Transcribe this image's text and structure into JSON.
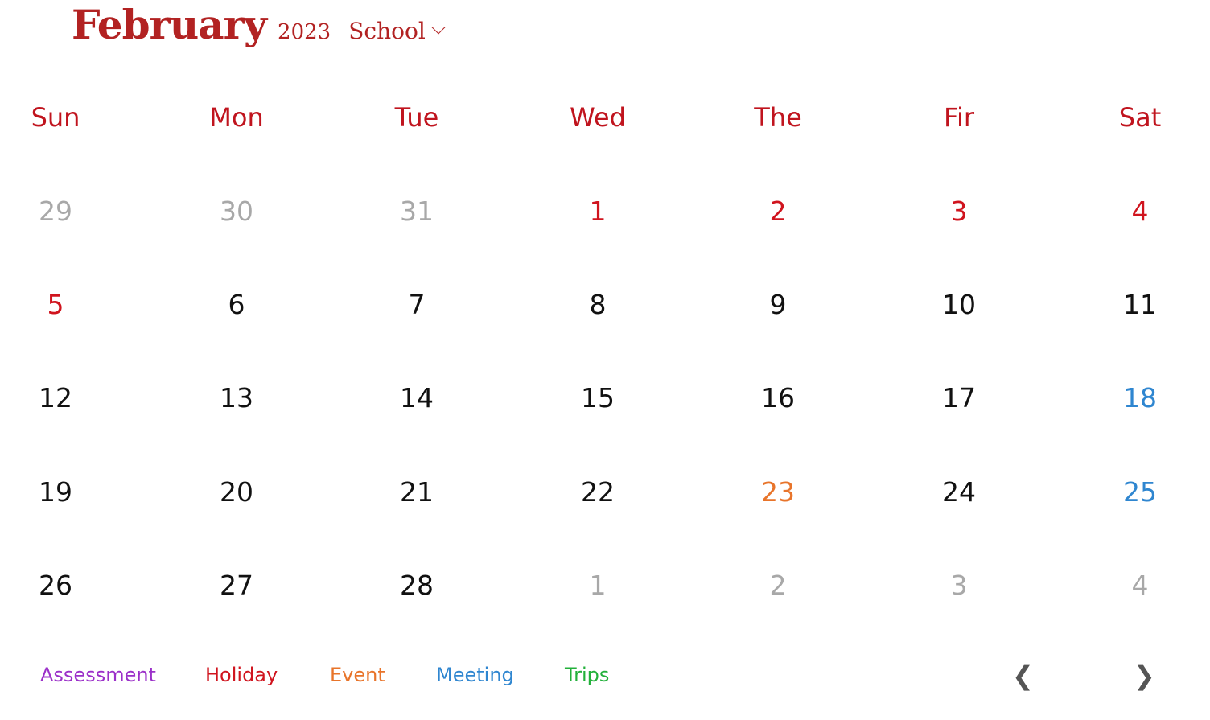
{
  "header": {
    "month": "February",
    "year": "2023",
    "calendar": "School"
  },
  "weekdays": [
    "Sun",
    "Mon",
    "Tue",
    "Wed",
    "The",
    "Fir",
    "Sat"
  ],
  "weeks": [
    [
      {
        "day": "29",
        "type": "outside"
      },
      {
        "day": "30",
        "type": "outside"
      },
      {
        "day": "31",
        "type": "outside"
      },
      {
        "day": "1",
        "type": "holiday"
      },
      {
        "day": "2",
        "type": "holiday"
      },
      {
        "day": "3",
        "type": "holiday"
      },
      {
        "day": "4",
        "type": "holiday"
      }
    ],
    [
      {
        "day": "5",
        "type": "holiday"
      },
      {
        "day": "6",
        "type": "normal"
      },
      {
        "day": "7",
        "type": "normal"
      },
      {
        "day": "8",
        "type": "normal"
      },
      {
        "day": "9",
        "type": "normal"
      },
      {
        "day": "10",
        "type": "normal"
      },
      {
        "day": "11",
        "type": "normal"
      }
    ],
    [
      {
        "day": "12",
        "type": "normal"
      },
      {
        "day": "13",
        "type": "normal"
      },
      {
        "day": "14",
        "type": "normal"
      },
      {
        "day": "15",
        "type": "normal"
      },
      {
        "day": "16",
        "type": "normal"
      },
      {
        "day": "17",
        "type": "normal"
      },
      {
        "day": "18",
        "type": "meeting"
      }
    ],
    [
      {
        "day": "19",
        "type": "normal"
      },
      {
        "day": "20",
        "type": "normal"
      },
      {
        "day": "21",
        "type": "normal"
      },
      {
        "day": "22",
        "type": "normal"
      },
      {
        "day": "23",
        "type": "event"
      },
      {
        "day": "24",
        "type": "normal"
      },
      {
        "day": "25",
        "type": "meeting"
      }
    ],
    [
      {
        "day": "26",
        "type": "normal"
      },
      {
        "day": "27",
        "type": "normal"
      },
      {
        "day": "28",
        "type": "normal"
      },
      {
        "day": "1",
        "type": "outside"
      },
      {
        "day": "2",
        "type": "outside"
      },
      {
        "day": "3",
        "type": "outside"
      },
      {
        "day": "4",
        "type": "outside"
      }
    ]
  ],
  "legend": [
    {
      "label": "Assessment",
      "color": "#9b30c9"
    },
    {
      "label": "Holiday",
      "color": "#d0141e"
    },
    {
      "label": "Event",
      "color": "#e8742a"
    },
    {
      "label": "Meeting",
      "color": "#2f86d0"
    },
    {
      "label": "Trips",
      "color": "#22b03a"
    }
  ],
  "colors": {
    "normal": "#111111",
    "outside": "#a8a8a8",
    "holiday": "#d0141e",
    "event": "#e8742a",
    "meeting": "#2f86d0",
    "accent": "#b22222"
  },
  "nav": {
    "prev": "❮",
    "next": "❯"
  }
}
